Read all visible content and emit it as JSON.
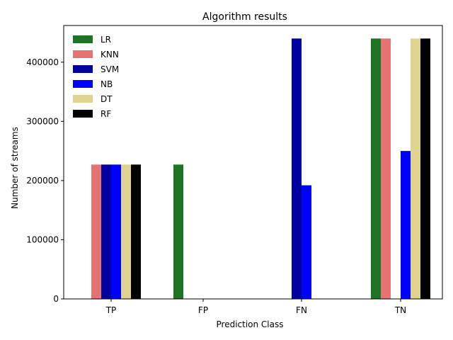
{
  "chart_data": {
    "type": "bar",
    "title": "Algorithm results",
    "xlabel": "Prediction Class",
    "ylabel": "Number of streams",
    "categories": [
      "TP",
      "FP",
      "FN",
      "TN"
    ],
    "ylim": [
      0,
      462000
    ],
    "yticks": [
      0,
      100000,
      200000,
      300000,
      400000
    ],
    "ytick_labels": [
      "0",
      "100000",
      "200000",
      "300000",
      "400000"
    ],
    "grid": false,
    "legend_position": "top-left",
    "series": [
      {
        "name": "LR",
        "color": "#1f7324",
        "values": [
          0,
          227000,
          0,
          440000
        ]
      },
      {
        "name": "KNN",
        "color": "#e57373",
        "values": [
          227000,
          0,
          0,
          440000
        ]
      },
      {
        "name": "SVM",
        "color": "#00009e",
        "values": [
          227000,
          0,
          440000,
          0
        ]
      },
      {
        "name": "NB",
        "color": "#0000ff",
        "values": [
          227000,
          0,
          192000,
          250000
        ]
      },
      {
        "name": "DT",
        "color": "#e0d38f",
        "values": [
          227000,
          0,
          0,
          440000
        ]
      },
      {
        "name": "RF",
        "color": "#000000",
        "values": [
          227000,
          0,
          0,
          440000
        ]
      }
    ]
  }
}
